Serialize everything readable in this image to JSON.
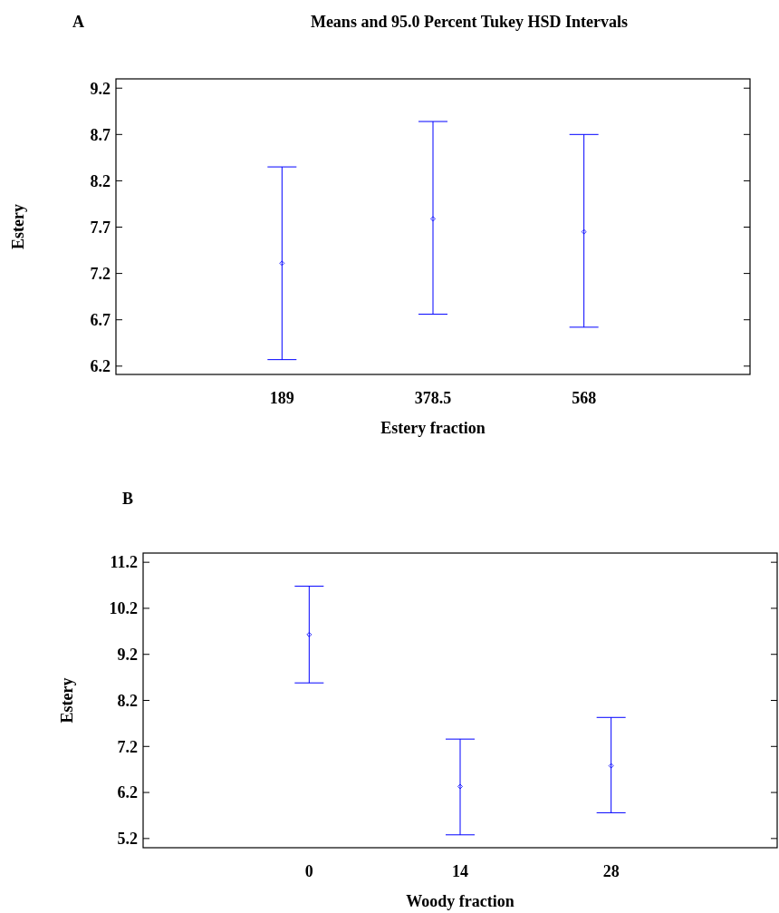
{
  "chart_data": [
    {
      "type": "scatter",
      "title": "Means and 95.0 Percent Tukey HSD Intervals",
      "annotations": [
        "A"
      ],
      "xlabel": "Estery fraction",
      "ylabel": "Estery",
      "categories": [
        "189",
        "378.5",
        "568"
      ],
      "marker": "diamond",
      "ylim": [
        6.11,
        9.3
      ],
      "yticks": [
        6.2,
        6.7,
        7.2,
        7.7,
        8.2,
        8.7,
        9.2
      ],
      "series": [
        {
          "color": "#0000ff",
          "values": [
            7.31,
            7.79,
            7.65
          ],
          "errors": [
            [
              6.27,
              8.35
            ],
            [
              6.76,
              8.84
            ],
            [
              6.62,
              8.7
            ]
          ]
        }
      ]
    },
    {
      "type": "scatter",
      "annotations": [
        "B"
      ],
      "xlabel": "Woody fraction",
      "ylabel": "Estery",
      "categories": [
        "0",
        "14",
        "28"
      ],
      "marker": "diamond",
      "ylim": [
        5.0,
        11.4
      ],
      "yticks": [
        5.2,
        6.2,
        7.2,
        8.2,
        9.2,
        10.2,
        11.2
      ],
      "series": [
        {
          "color": "#0000ff",
          "values": [
            9.63,
            6.33,
            6.78
          ],
          "errors": [
            [
              8.58,
              10.68
            ],
            [
              5.28,
              7.36
            ],
            [
              5.76,
              7.83
            ]
          ]
        }
      ]
    }
  ]
}
